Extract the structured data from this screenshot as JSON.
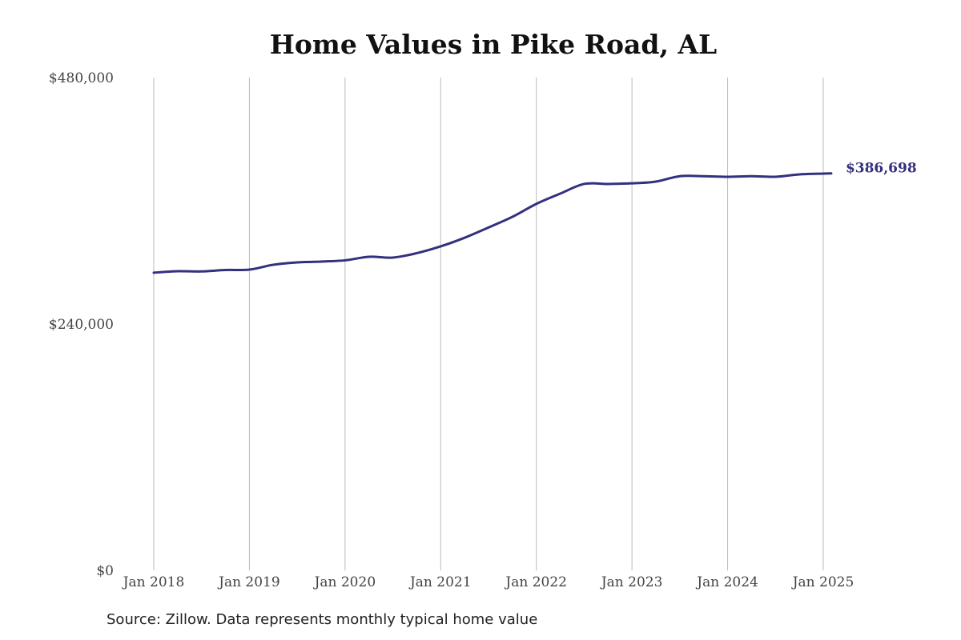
{
  "chart_data": {
    "type": "line",
    "title": "Home Values in Pike Road, AL",
    "source": "Source: Zillow. Data represents monthly typical home value",
    "xlabel": "",
    "ylabel": "",
    "ylim": [
      0,
      480000
    ],
    "yticks": [
      0,
      240000,
      480000
    ],
    "ytick_labels": [
      "$0",
      "$240,000",
      "$480,000"
    ],
    "xticks": [
      0,
      12,
      24,
      36,
      48,
      60,
      72,
      84
    ],
    "xtick_labels": [
      "Jan 2018",
      "Jan 2019",
      "Jan 2020",
      "Jan 2021",
      "Jan 2022",
      "Jan 2023",
      "Jan 2024",
      "Jan 2025"
    ],
    "x_unit": "months since Jan 2018",
    "grid": "vertical",
    "line_color": "#33307f",
    "series": [
      {
        "name": "Typical home value",
        "x": [
          0,
          3,
          6,
          9,
          12,
          15,
          18,
          21,
          24,
          27,
          30,
          33,
          36,
          39,
          42,
          45,
          48,
          51,
          54,
          57,
          60,
          63,
          66,
          69,
          72,
          75,
          78,
          81,
          84,
          85
        ],
        "values": [
          290000,
          291400,
          291200,
          292600,
          293000,
          297700,
          300000,
          300800,
          302000,
          305500,
          304700,
          309000,
          315600,
          324000,
          334000,
          344400,
          357000,
          367000,
          376400,
          376400,
          377000,
          378700,
          384000,
          384000,
          383400,
          384000,
          383400,
          385700,
          386500,
          386698
        ]
      }
    ],
    "end_label": "$386,698"
  }
}
